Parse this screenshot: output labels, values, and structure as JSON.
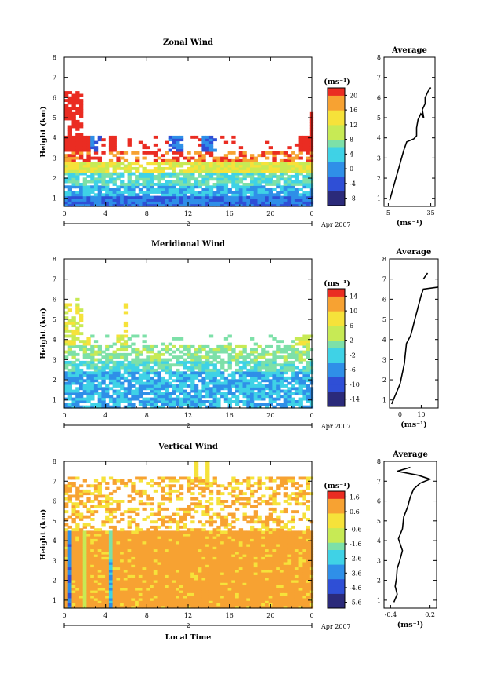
{
  "figure": {
    "date_label": "Apr 2007",
    "day_label": "2",
    "xlabel": "Local Time",
    "ylabel": "Height (km)",
    "unit_label": "(ms⁻¹)",
    "average_title": "Average"
  },
  "chart_data": [
    {
      "type": "heatmap",
      "title": "Zonal Wind",
      "xlabel": "",
      "ylabel": "Height (km)",
      "xlim": [
        0,
        24
      ],
      "ylim": [
        0.6,
        8
      ],
      "xticks": [
        "0",
        "4",
        "8",
        "12",
        "16",
        "20",
        "0"
      ],
      "yticks": [
        "1",
        "2",
        "3",
        "4",
        "5",
        "6",
        "7",
        "8"
      ],
      "colorbar": {
        "unit": "(ms⁻¹)",
        "ticks": [
          "-8",
          "-4",
          "0",
          "4",
          "8",
          "12",
          "16",
          "20"
        ],
        "range": [
          -10,
          22
        ]
      },
      "average_profile": {
        "title": "Average",
        "xlabel": "(ms⁻¹)",
        "xticks": [
          "5",
          "35"
        ],
        "xlim": [
          2,
          38
        ],
        "points": [
          [
            6,
            0.9
          ],
          [
            8,
            1.4
          ],
          [
            10,
            1.9
          ],
          [
            12,
            2.4
          ],
          [
            14,
            2.9
          ],
          [
            16,
            3.4
          ],
          [
            18,
            3.8
          ],
          [
            23,
            3.95
          ],
          [
            25,
            4.1
          ],
          [
            25,
            4.5
          ],
          [
            26,
            4.9
          ],
          [
            28,
            5.2
          ],
          [
            30,
            5.0
          ],
          [
            29,
            5.4
          ],
          [
            31,
            5.7
          ],
          [
            31,
            6.0
          ],
          [
            33,
            6.3
          ],
          [
            35,
            6.5
          ]
        ]
      }
    },
    {
      "type": "heatmap",
      "title": "Meridional Wind",
      "xlabel": "",
      "ylabel": "Height (km)",
      "xlim": [
        0,
        24
      ],
      "ylim": [
        0.6,
        8
      ],
      "xticks": [
        "0",
        "4",
        "8",
        "12",
        "16",
        "20",
        "0"
      ],
      "yticks": [
        "1",
        "2",
        "3",
        "4",
        "5",
        "6",
        "7",
        "8"
      ],
      "colorbar": {
        "unit": "(ms⁻¹)",
        "ticks": [
          "-14",
          "-10",
          "-6",
          "-2",
          "2",
          "6",
          "10",
          "14"
        ],
        "range": [
          -16,
          16
        ]
      },
      "average_profile": {
        "title": "Average",
        "xlabel": "(ms⁻¹)",
        "xticks": [
          "0",
          "10"
        ],
        "xlim": [
          -5,
          18
        ],
        "points": [
          [
            -4,
            0.8
          ],
          [
            -2,
            1.3
          ],
          [
            0,
            1.8
          ],
          [
            1,
            2.3
          ],
          [
            2,
            2.8
          ],
          [
            2.5,
            3.3
          ],
          [
            3,
            3.8
          ],
          [
            5,
            4.2
          ],
          [
            6,
            4.6
          ],
          [
            7,
            5.0
          ],
          [
            8,
            5.4
          ],
          [
            9,
            5.8
          ],
          [
            10,
            6.2
          ],
          [
            11,
            6.5
          ],
          [
            18,
            6.6
          ]
        ],
        "points_upper": [
          [
            11,
            7.0
          ],
          [
            13,
            7.3
          ]
        ]
      }
    },
    {
      "type": "heatmap",
      "title": "Vertical Wind",
      "xlabel": "Local Time",
      "ylabel": "Height (km)",
      "xlim": [
        0,
        24
      ],
      "ylim": [
        0.6,
        8
      ],
      "xticks": [
        "0",
        "4",
        "8",
        "12",
        "16",
        "20",
        "0"
      ],
      "yticks": [
        "1",
        "2",
        "3",
        "4",
        "5",
        "6",
        "7",
        "8"
      ],
      "colorbar": {
        "unit": "(ms⁻¹)",
        "ticks": [
          "-5.6",
          "-4.6",
          "-3.6",
          "-2.6",
          "-1.6",
          "-0.6",
          "0.6",
          "1.6"
        ],
        "range": [
          -6,
          2
        ]
      },
      "average_profile": {
        "title": "Average",
        "xlabel": "(ms⁻¹)",
        "xticks": [
          "-0.4",
          "0.2"
        ],
        "xlim": [
          -0.5,
          0.3
        ],
        "points": [
          [
            -0.35,
            0.9
          ],
          [
            -0.3,
            1.3
          ],
          [
            -0.33,
            1.7
          ],
          [
            -0.31,
            2.1
          ],
          [
            -0.3,
            2.6
          ],
          [
            -0.26,
            3.0
          ],
          [
            -0.22,
            3.5
          ],
          [
            -0.28,
            4.1
          ],
          [
            -0.22,
            4.6
          ],
          [
            -0.2,
            5.2
          ],
          [
            -0.14,
            5.7
          ],
          [
            -0.1,
            6.2
          ],
          [
            -0.05,
            6.6
          ],
          [
            0.05,
            6.9
          ],
          [
            0.2,
            7.1
          ],
          [
            0.02,
            7.3
          ],
          [
            -0.3,
            7.5
          ],
          [
            -0.1,
            7.7
          ]
        ]
      }
    }
  ]
}
